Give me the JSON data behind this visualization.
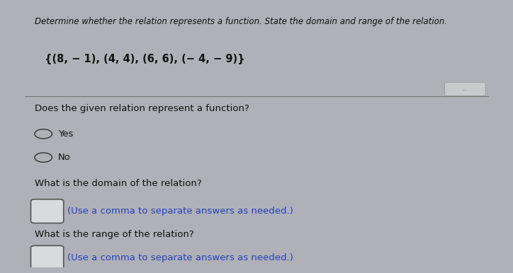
{
  "bg_color": "#b0b0b8",
  "card_color": "#e2e4e8",
  "card_right_color": "#d0d4dc",
  "header_text": "Determine whether the relation represents a function. State the domain and range of the relation.",
  "relation_text": "{(8, − 1), (4, 4), (6, 6), (− 4, − 9)}",
  "question1": "Does the given relation represent a function?",
  "option_yes": "Yes",
  "option_no": "No",
  "question2": "What is the domain of the relation?",
  "domain_hint": "(Use a comma to separate answers as needed.)",
  "question3": "What is the range of the relation?",
  "range_hint": "(Use a comma to separate answers as needed.)",
  "header_fontsize": 8.5,
  "relation_fontsize": 10.5,
  "question_fontsize": 9.5,
  "option_fontsize": 9.5,
  "hint_fontsize": 9.5,
  "hint_color": "#2244bb",
  "text_color": "#111111",
  "divider_color": "#777777",
  "dots_color": "#888888"
}
